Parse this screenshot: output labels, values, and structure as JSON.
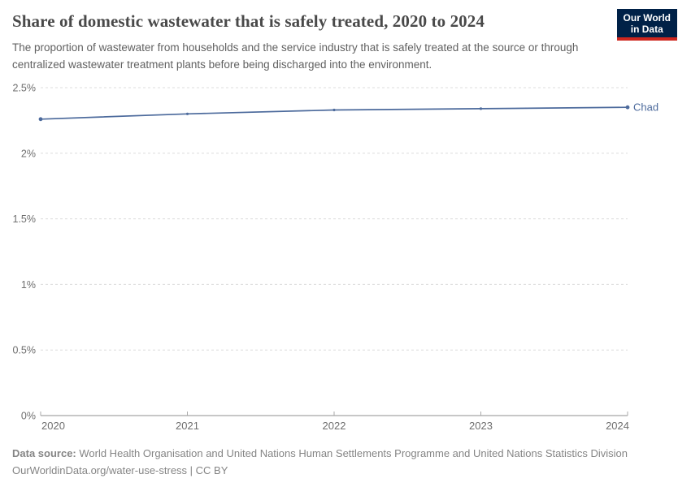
{
  "header": {
    "title": "Share of domestic wastewater that is safely treated, 2020 to 2024",
    "subtitle": "The proportion of wastewater from households and the service industry that is safely treated at the source or through centralized wastewater treatment plants before being discharged into the environment.",
    "logo": {
      "line1": "Our World",
      "line2": "in Data",
      "bg_color": "#002147",
      "accent_color": "#ce261e"
    }
  },
  "chart_data": {
    "type": "line",
    "title": "Share of domestic wastewater that is safely treated, 2020 to 2024",
    "x": [
      2020,
      2021,
      2022,
      2023,
      2024
    ],
    "xtick_labels": [
      "2020",
      "2021",
      "2022",
      "2023",
      "2024"
    ],
    "series": [
      {
        "name": "Chad",
        "values": [
          2.26,
          2.3,
          2.33,
          2.34,
          2.35
        ],
        "color": "#4c6a9c"
      }
    ],
    "xlabel": "",
    "ylabel": "",
    "ylim": [
      0,
      2.5
    ],
    "yticks": [
      0,
      0.5,
      1,
      1.5,
      2,
      2.5
    ],
    "ytick_labels": [
      "0%",
      "0.5%",
      "1%",
      "1.5%",
      "2%",
      "2.5%"
    ],
    "grid": "horizontal-dashed",
    "grid_color": "#dcdcdc",
    "axis_color": "#8f8f8f",
    "tick_label_color": "#6e6e6e",
    "legend_position": "end-of-line"
  },
  "footer": {
    "source_label": "Data source:",
    "source_text": " World Health Organisation and United Nations Human Settlements Programme and United Nations Statistics Division",
    "link_line": "OurWorldinData.org/water-use-stress | CC BY"
  }
}
